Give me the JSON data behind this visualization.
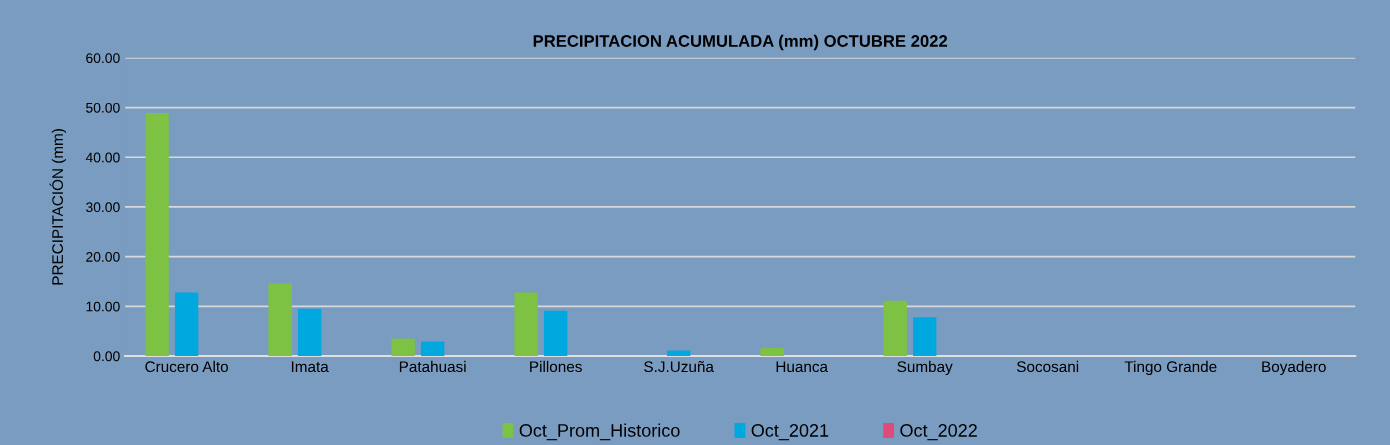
{
  "chart_data": {
    "type": "bar",
    "title": "PRECIPITACION ACUMULADA (mm) OCTUBRE 2022",
    "ylabel": "PRECIPITACIÓN (mm)",
    "categories": [
      "Crucero Alto",
      "Imata",
      "Patahuasi",
      "Pillones",
      "S.J.Uzuña",
      "Huanca",
      "Sumbay",
      "Socosani",
      "Tingo Grande",
      "Boyadero"
    ],
    "series": [
      {
        "name": "Oct_Prom_Historico",
        "color": "#7dc242",
        "values": [
          48.9,
          14.6,
          3.5,
          12.8,
          0,
          1.6,
          11.1,
          0,
          0,
          0
        ]
      },
      {
        "name": "Oct_2021",
        "color": "#00a8e0",
        "values": [
          12.8,
          9.5,
          2.9,
          9.1,
          1.1,
          0,
          7.8,
          0,
          0,
          0
        ]
      },
      {
        "name": "Oct_2022",
        "color": "#e04a7a",
        "values": [
          0,
          0,
          0,
          0,
          0,
          0,
          0,
          0,
          0,
          0
        ]
      }
    ],
    "ylim": [
      0,
      60
    ],
    "yticks": [
      {
        "value": 0,
        "label": "0.00"
      },
      {
        "value": 10,
        "label": "10.00"
      },
      {
        "value": 20,
        "label": "20.00"
      },
      {
        "value": 30,
        "label": "30.00"
      },
      {
        "value": 40,
        "label": "40.00"
      },
      {
        "value": 50,
        "label": "50.00"
      },
      {
        "value": 60,
        "label": "60.00"
      }
    ],
    "grid": "y",
    "legend": "bottom"
  }
}
